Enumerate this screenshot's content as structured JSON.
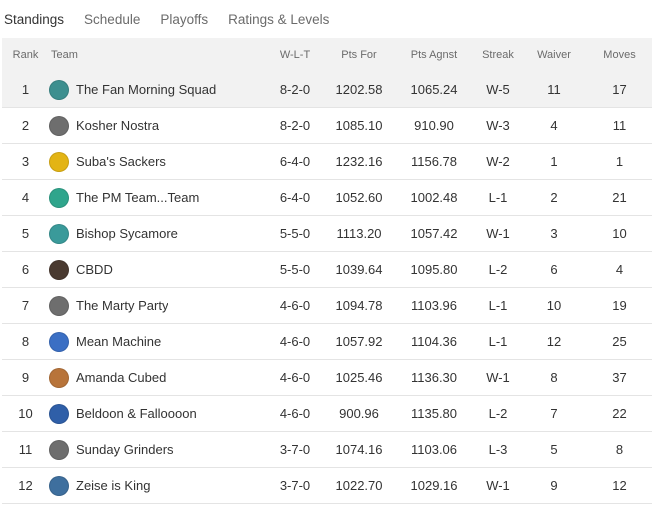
{
  "tabs": [
    {
      "label": "Standings",
      "active": true
    },
    {
      "label": "Schedule",
      "active": false
    },
    {
      "label": "Playoffs",
      "active": false
    },
    {
      "label": "Ratings & Levels",
      "active": false
    }
  ],
  "columns": [
    "Rank",
    "Team",
    "W-L-T",
    "Pts For",
    "Pts Agnst",
    "Streak",
    "Waiver",
    "Moves"
  ],
  "rows": [
    {
      "rank": "1",
      "team": "The Fan Morning Squad",
      "avatar_color": "#3d8f8f",
      "wlt": "8-2-0",
      "pts_for": "1202.58",
      "pts_agnst": "1065.24",
      "streak": "W-5",
      "waiver": "11",
      "moves": "17"
    },
    {
      "rank": "2",
      "team": "Kosher Nostra",
      "avatar_color": "#6e6e6e",
      "wlt": "8-2-0",
      "pts_for": "1085.10",
      "pts_agnst": "910.90",
      "streak": "W-3",
      "waiver": "4",
      "moves": "11"
    },
    {
      "rank": "3",
      "team": "Suba's Sackers",
      "avatar_color": "#e3b414",
      "wlt": "6-4-0",
      "pts_for": "1232.16",
      "pts_agnst": "1156.78",
      "streak": "W-2",
      "waiver": "1",
      "moves": "1"
    },
    {
      "rank": "4",
      "team": "The PM Team...Team",
      "avatar_color": "#2fa58c",
      "wlt": "6-4-0",
      "pts_for": "1052.60",
      "pts_agnst": "1002.48",
      "streak": "L-1",
      "waiver": "2",
      "moves": "21"
    },
    {
      "rank": "5",
      "team": "Bishop Sycamore",
      "avatar_color": "#3a9a9a",
      "wlt": "5-5-0",
      "pts_for": "1113.20",
      "pts_agnst": "1057.42",
      "streak": "W-1",
      "waiver": "3",
      "moves": "10"
    },
    {
      "rank": "6",
      "team": "CBDD",
      "avatar_color": "#4a3a30",
      "wlt": "5-5-0",
      "pts_for": "1039.64",
      "pts_agnst": "1095.80",
      "streak": "L-2",
      "waiver": "6",
      "moves": "4"
    },
    {
      "rank": "7",
      "team": "The Marty Party",
      "avatar_color": "#6e6e6e",
      "wlt": "4-6-0",
      "pts_for": "1094.78",
      "pts_agnst": "1103.96",
      "streak": "L-1",
      "waiver": "10",
      "moves": "19"
    },
    {
      "rank": "8",
      "team": "Mean Machine",
      "avatar_color": "#3b6fc4",
      "wlt": "4-6-0",
      "pts_for": "1057.92",
      "pts_agnst": "1104.36",
      "streak": "L-1",
      "waiver": "12",
      "moves": "25"
    },
    {
      "rank": "9",
      "team": "Amanda Cubed",
      "avatar_color": "#b8743a",
      "wlt": "4-6-0",
      "pts_for": "1025.46",
      "pts_agnst": "1136.30",
      "streak": "W-1",
      "waiver": "8",
      "moves": "37"
    },
    {
      "rank": "10",
      "team": "Beldoon & Falloooon",
      "avatar_color": "#2f5fa8",
      "wlt": "4-6-0",
      "pts_for": "900.96",
      "pts_agnst": "1135.80",
      "streak": "L-2",
      "waiver": "7",
      "moves": "22"
    },
    {
      "rank": "11",
      "team": "Sunday Grinders",
      "avatar_color": "#6e6e6e",
      "wlt": "3-7-0",
      "pts_for": "1074.16",
      "pts_agnst": "1103.06",
      "streak": "L-3",
      "waiver": "5",
      "moves": "8"
    },
    {
      "rank": "12",
      "team": "Zeise is King",
      "avatar_color": "#3e6f9e",
      "wlt": "3-7-0",
      "pts_for": "1022.70",
      "pts_agnst": "1029.16",
      "streak": "W-1",
      "waiver": "9",
      "moves": "12"
    }
  ]
}
